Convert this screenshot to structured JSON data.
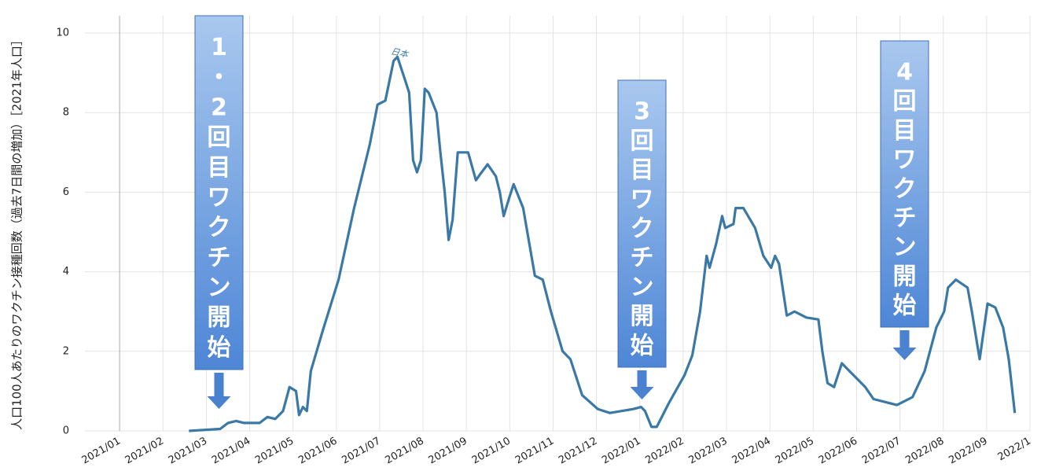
{
  "chart_data": {
    "type": "line",
    "y_label": "人口100人あたりのワクチン接種回数（過去7日間の増加）［2021年人口］",
    "xlim": [
      -0.8,
      21
    ],
    "ylim": [
      0,
      10
    ],
    "yticks": [
      0,
      2,
      4,
      6,
      8,
      10
    ],
    "xticks": [
      {
        "value": 0,
        "label": "2021/01"
      },
      {
        "value": 1,
        "label": "2021/02"
      },
      {
        "value": 2,
        "label": "2021/03"
      },
      {
        "value": 3,
        "label": "2021/04"
      },
      {
        "value": 4,
        "label": "2021/05"
      },
      {
        "value": 5,
        "label": "2021/06"
      },
      {
        "value": 6,
        "label": "2021/07"
      },
      {
        "value": 7,
        "label": "2021/08"
      },
      {
        "value": 8,
        "label": "2021/09"
      },
      {
        "value": 9,
        "label": "2021/10"
      },
      {
        "value": 10,
        "label": "2021/11"
      },
      {
        "value": 11,
        "label": "2021/12"
      },
      {
        "value": 12,
        "label": "2022/01"
      },
      {
        "value": 13,
        "label": "2022/02"
      },
      {
        "value": 14,
        "label": "2022/03"
      },
      {
        "value": 15,
        "label": "2022/04"
      },
      {
        "value": 16,
        "label": "2022/05"
      },
      {
        "value": 17,
        "label": "2022/06"
      },
      {
        "value": 18,
        "label": "2022/07"
      },
      {
        "value": 19,
        "label": "2022/08"
      },
      {
        "value": 20,
        "label": "2022/09"
      },
      {
        "value": 21,
        "label": "2022/1"
      }
    ],
    "grid": true,
    "series": [
      {
        "name": "日本",
        "color": "#3a78a6",
        "x": [
          1.6,
          2.32,
          2.5,
          2.69,
          2.87,
          3.23,
          3.41,
          3.59,
          3.77,
          3.92,
          4.07,
          4.14,
          4.23,
          4.32,
          4.41,
          4.68,
          5.05,
          5.41,
          5.77,
          5.95,
          6.13,
          6.32,
          6.41,
          6.59,
          6.68,
          6.77,
          6.86,
          6.95,
          7.04,
          7.13,
          7.31,
          7.4,
          7.5,
          7.59,
          7.68,
          7.8,
          8.04,
          8.22,
          8.35,
          8.49,
          8.68,
          8.77,
          8.86,
          9.0,
          9.09,
          9.31,
          9.58,
          9.76,
          9.95,
          10.22,
          10.4,
          10.67,
          11.03,
          11.31,
          11.58,
          11.85,
          12.03,
          12.12,
          12.27,
          12.39,
          12.67,
          13.03,
          13.21,
          13.39,
          13.54,
          13.61,
          13.76,
          13.9,
          13.97,
          14.16,
          14.21,
          14.39,
          14.66,
          14.85,
          15.03,
          15.12,
          15.21,
          15.39,
          15.57,
          15.84,
          16.12,
          16.21,
          16.33,
          16.48,
          16.66,
          16.84,
          17.2,
          17.39,
          17.75,
          17.93,
          18.29,
          18.57,
          18.84,
          19.02,
          19.11,
          19.29,
          19.56,
          19.66,
          19.84,
          20.02,
          20.2,
          20.38,
          20.51,
          20.65
        ],
        "values": [
          0,
          0.05,
          0.2,
          0.25,
          0.2,
          0.2,
          0.35,
          0.3,
          0.5,
          1.1,
          1.0,
          0.4,
          0.6,
          0.5,
          1.5,
          2.5,
          3.8,
          5.6,
          7.2,
          8.2,
          8.3,
          9.3,
          9.4,
          8.8,
          8.5,
          6.8,
          6.5,
          6.8,
          8.6,
          8.5,
          8.0,
          7.0,
          6.0,
          4.8,
          5.3,
          7.0,
          7.0,
          6.3,
          6.5,
          6.7,
          6.4,
          6.0,
          5.4,
          5.9,
          6.2,
          5.6,
          3.9,
          3.8,
          3.0,
          2.0,
          1.8,
          0.9,
          0.55,
          0.45,
          0.5,
          0.55,
          0.6,
          0.5,
          0.1,
          0.1,
          0.7,
          1.4,
          1.9,
          3.0,
          4.4,
          4.1,
          4.7,
          5.4,
          5.1,
          5.2,
          5.6,
          5.6,
          5.1,
          4.4,
          4.1,
          4.4,
          4.2,
          2.9,
          3.0,
          2.85,
          2.8,
          2.0,
          1.2,
          1.1,
          1.7,
          1.5,
          1.1,
          0.8,
          0.7,
          0.65,
          0.85,
          1.5,
          2.6,
          3.0,
          3.6,
          3.8,
          3.6,
          3.0,
          1.8,
          3.2,
          3.1,
          2.6,
          1.8,
          0.45
        ]
      }
    ],
    "annotations": [
      "1・2回目ワクチン開始",
      "3回目ワクチン開始",
      "4回目ワクチン開始"
    ]
  }
}
